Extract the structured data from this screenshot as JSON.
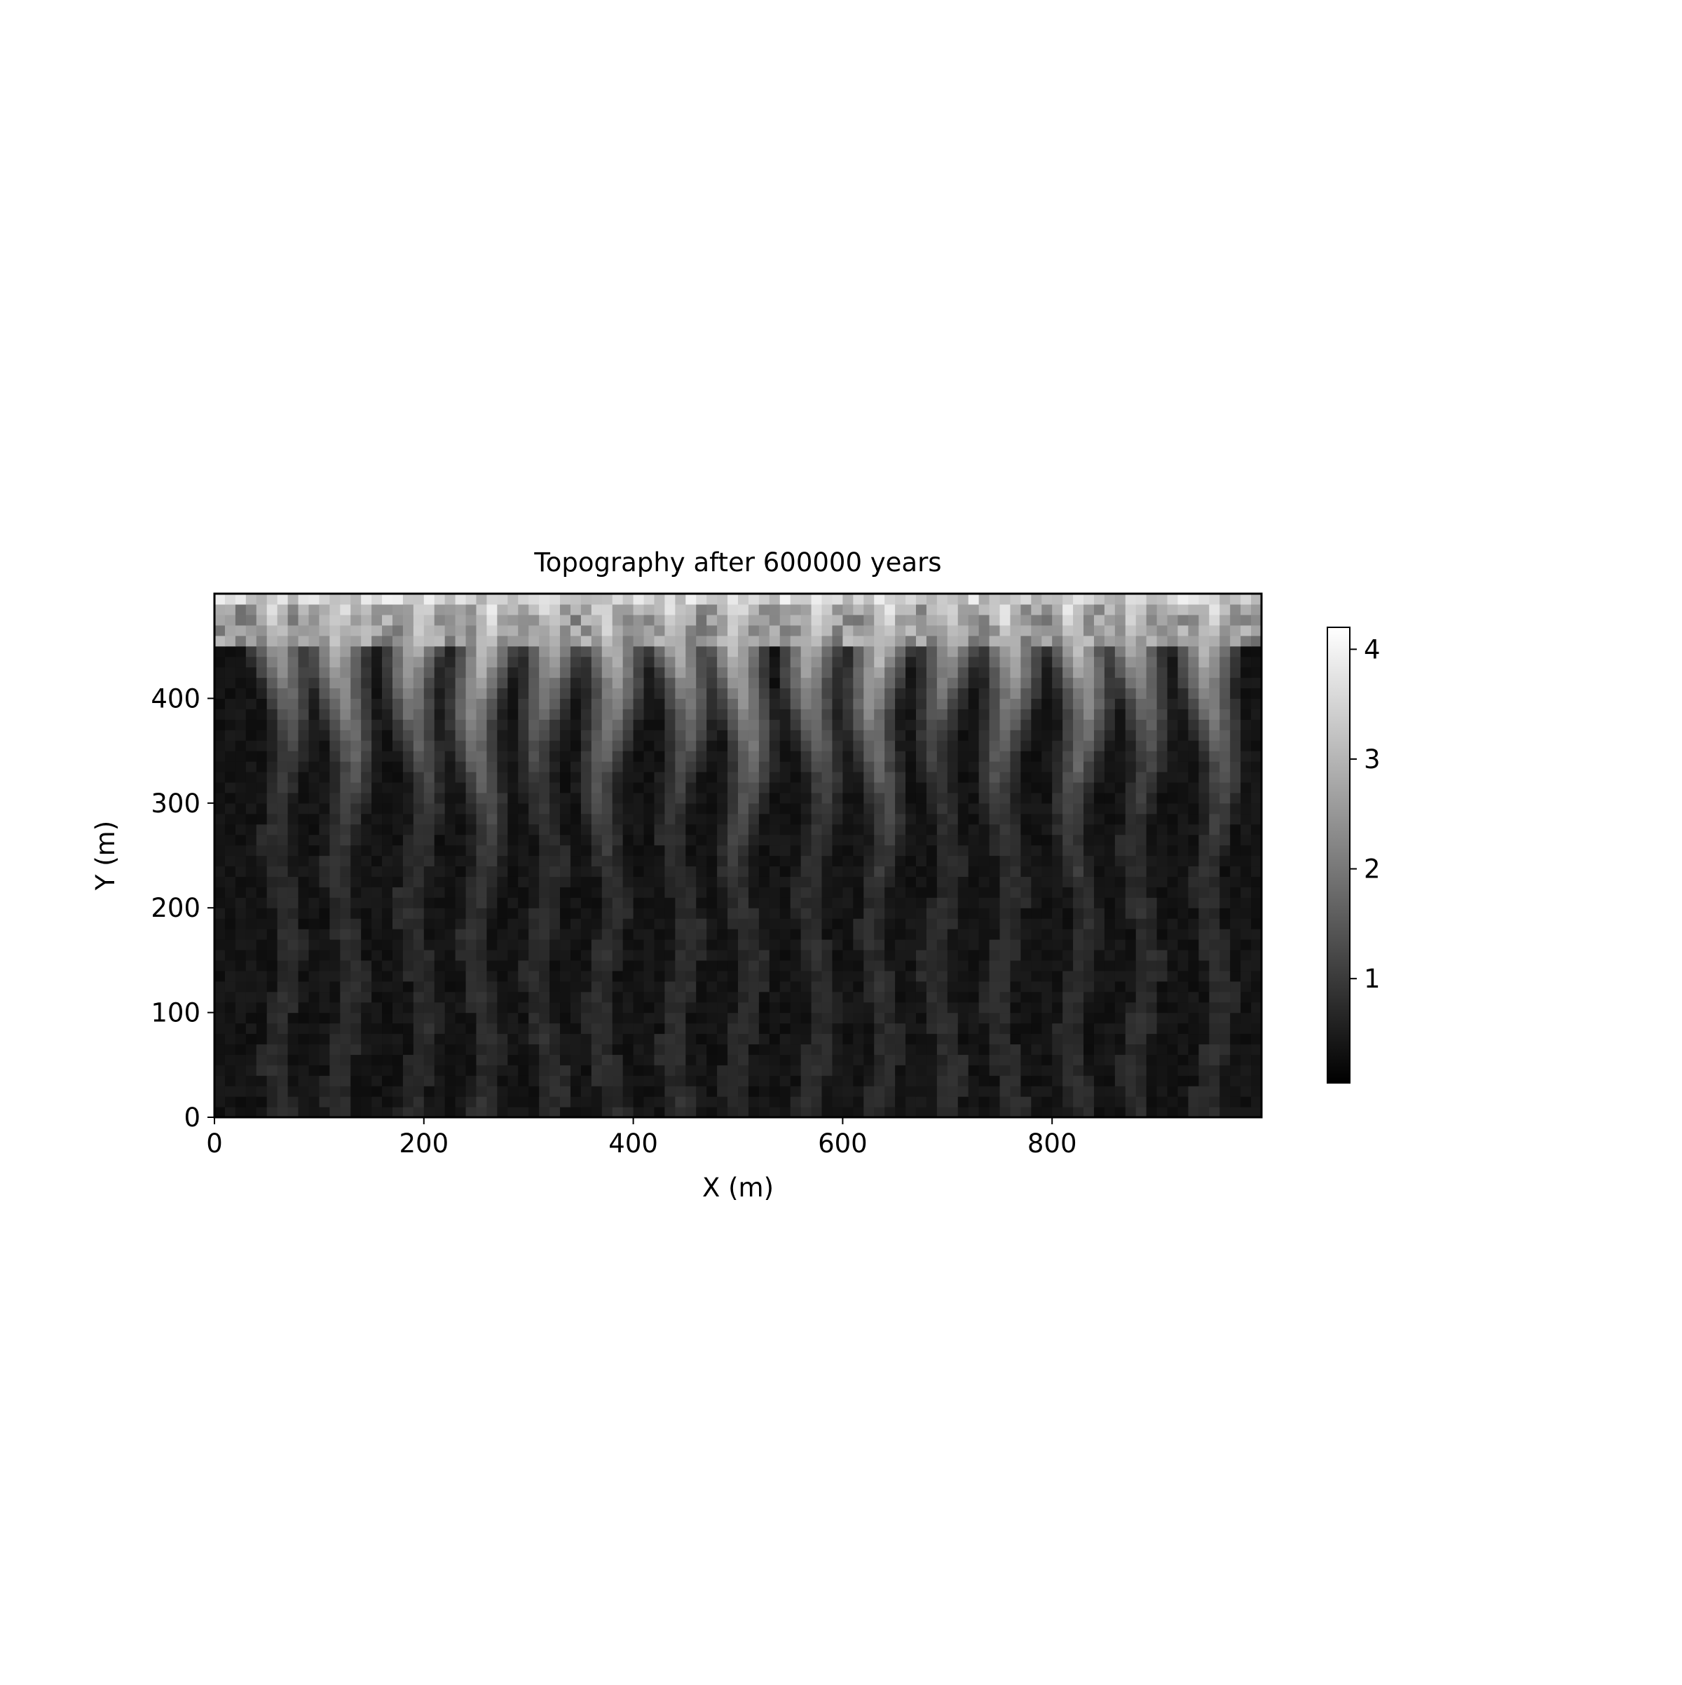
{
  "chart_data": {
    "type": "heatmap",
    "title": "Topography after 600000 years",
    "xlabel": "X (m)",
    "ylabel": "Y (m)",
    "xlim": [
      0,
      1000
    ],
    "ylim": [
      0,
      500
    ],
    "x_ticks": [
      0,
      200,
      400,
      600,
      800
    ],
    "y_ticks": [
      0,
      100,
      200,
      300,
      400
    ],
    "colormap": "grayscale",
    "colorbar": {
      "range": [
        0.05,
        4.2
      ],
      "ticks": [
        1,
        2,
        3,
        4
      ]
    },
    "grid": false,
    "data_description_grid": {
      "nx": 100,
      "ny": 50,
      "cell_size_m": 10
    },
    "values_note": ""
  }
}
